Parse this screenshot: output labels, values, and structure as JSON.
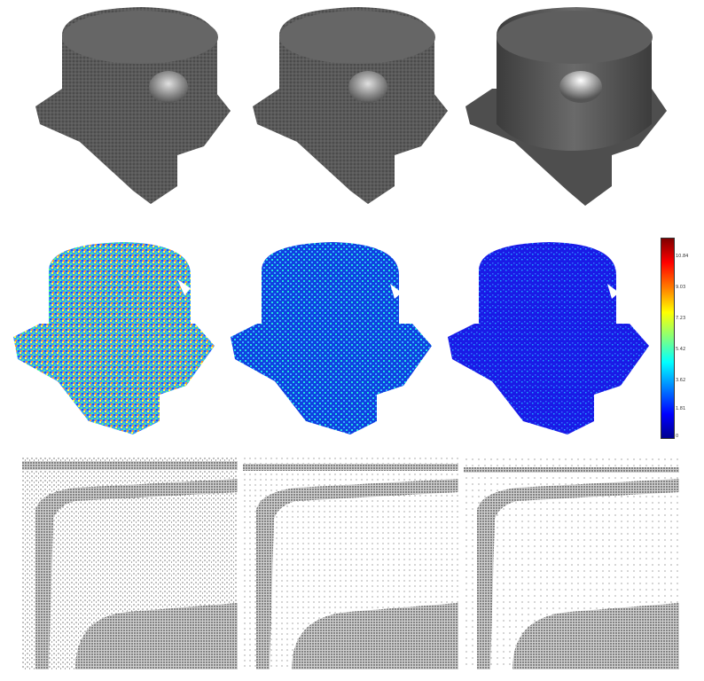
{
  "figure": {
    "rows": [
      {
        "name": "reconstructed-surfaces",
        "panels": 3
      },
      {
        "name": "error-heatmaps",
        "panels": 3
      },
      {
        "name": "point-cloud-closeups",
        "panels": 3
      }
    ],
    "colorbar": {
      "ticks": [
        "10.84",
        "9.03",
        "7.23",
        "5.42",
        "3.62",
        "1.81",
        "0"
      ],
      "colormap": "jet",
      "colors": [
        "#7f0000",
        "#ff0000",
        "#ff8000",
        "#ffff00",
        "#80ff80",
        "#00ffff",
        "#0080ff",
        "#0000ff",
        "#00008f"
      ]
    },
    "surface_shading": [
      "noisy",
      "noisy",
      "smooth"
    ],
    "heatmap_noise_level": [
      "high",
      "medium",
      "low"
    ],
    "pointcloud_density": [
      "high-noise",
      "medium-noise",
      "low-noise"
    ]
  }
}
